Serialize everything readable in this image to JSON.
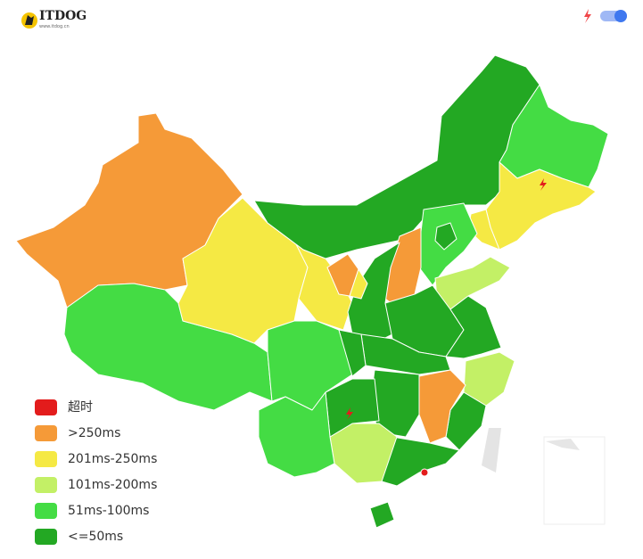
{
  "header": {
    "logo": "ITDOG",
    "logo_url": "www.itdog.cn"
  },
  "legend": {
    "items": [
      {
        "label": "超时",
        "color": "#e31c1c"
      },
      {
        "label": ">250ms",
        "color": "#f59a38"
      },
      {
        "label": "201ms-250ms",
        "color": "#f5e944"
      },
      {
        "label": "101ms-200ms",
        "color": "#c3f066"
      },
      {
        "label": "51ms-100ms",
        "color": "#44dc44"
      },
      {
        "label": "<=50ms",
        "color": "#23a823"
      }
    ]
  }
}
